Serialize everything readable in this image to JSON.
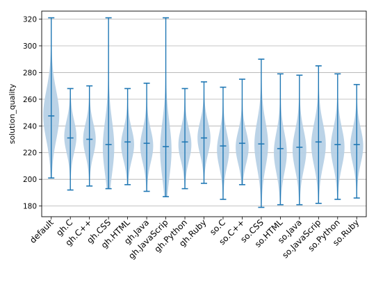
{
  "chart_data": {
    "type": "violin",
    "title": "",
    "xlabel": "",
    "ylabel": "solution_quality",
    "ylim": [
      172,
      326
    ],
    "yticks": [
      180,
      200,
      220,
      240,
      260,
      280,
      300,
      320
    ],
    "grid": "y",
    "colors": {
      "fill": "#b7d1e6",
      "line": "#1f77b4",
      "grid": "#b0b0b0"
    },
    "categories": [
      "default",
      "gh.C",
      "gh.C++",
      "gh.CSS",
      "gh.HTML",
      "gh.Java",
      "gh.JavaScrip",
      "gh.Python",
      "gh.Ruby",
      "so.C",
      "so.C++",
      "so.CSS",
      "so.HTML",
      "so.Java",
      "so.JavaScrip",
      "so.Python",
      "so.Ruby"
    ],
    "series": [
      {
        "min": 201,
        "max": 321,
        "mean": 247.5,
        "mode": 248,
        "width": 0.42
      },
      {
        "min": 192,
        "max": 268,
        "mean": 231,
        "mode": 232,
        "width": 0.32
      },
      {
        "min": 195,
        "max": 270,
        "mean": 230,
        "mode": 230,
        "width": 0.33
      },
      {
        "min": 193,
        "max": 321,
        "mean": 226,
        "mode": 224,
        "width": 0.3
      },
      {
        "min": 196,
        "max": 268,
        "mean": 228,
        "mode": 226,
        "width": 0.34
      },
      {
        "min": 191,
        "max": 272,
        "mean": 227,
        "mode": 225,
        "width": 0.34
      },
      {
        "min": 187,
        "max": 321,
        "mean": 224.5,
        "mode": 222,
        "width": 0.3
      },
      {
        "min": 193,
        "max": 268,
        "mean": 228,
        "mode": 226,
        "width": 0.34
      },
      {
        "min": 197,
        "max": 273,
        "mean": 231,
        "mode": 231,
        "width": 0.34
      },
      {
        "min": 185,
        "max": 269,
        "mean": 225,
        "mode": 222,
        "width": 0.32
      },
      {
        "min": 196,
        "max": 275,
        "mean": 227,
        "mode": 224,
        "width": 0.34
      },
      {
        "min": 179,
        "max": 290,
        "mean": 226.5,
        "mode": 226,
        "width": 0.36
      },
      {
        "min": 181,
        "max": 279,
        "mean": 223,
        "mode": 220,
        "width": 0.34
      },
      {
        "min": 181,
        "max": 278,
        "mean": 224,
        "mode": 222,
        "width": 0.36
      },
      {
        "min": 182,
        "max": 285,
        "mean": 228,
        "mode": 226,
        "width": 0.38
      },
      {
        "min": 185,
        "max": 279,
        "mean": 226,
        "mode": 224,
        "width": 0.36
      },
      {
        "min": 186,
        "max": 271,
        "mean": 226,
        "mode": 225,
        "width": 0.34
      }
    ]
  }
}
